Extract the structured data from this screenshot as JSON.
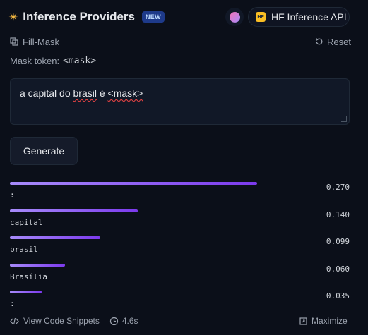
{
  "header": {
    "title": "Inference Providers",
    "badge": "NEW",
    "provider": {
      "logo_text": "HF",
      "label": "HF Inference API"
    }
  },
  "task": {
    "label": "Fill-Mask",
    "reset_label": "Reset"
  },
  "mask": {
    "label": "Mask token:",
    "token": "<mask>"
  },
  "input": {
    "text_parts": [
      "a capital do ",
      "brasil",
      " é ",
      "<mask>"
    ]
  },
  "actions": {
    "generate_label": "Generate"
  },
  "results": [
    {
      "token": ":",
      "score": "0.270",
      "value": 0.27
    },
    {
      "token": "capital",
      "score": "0.140",
      "value": 0.14
    },
    {
      "token": "brasil",
      "score": "0.099",
      "value": 0.099
    },
    {
      "token": "Brasília",
      "score": "0.060",
      "value": 0.06
    },
    {
      "token": ":",
      "score": "0.035",
      "value": 0.035
    }
  ],
  "footer": {
    "snippets_label": "View Code Snippets",
    "timing": "4.6s",
    "maximize_label": "Maximize"
  },
  "colors": {
    "bar_start": "#a78bfa",
    "bar_end": "#7c3aed",
    "background": "#0b0f19"
  }
}
